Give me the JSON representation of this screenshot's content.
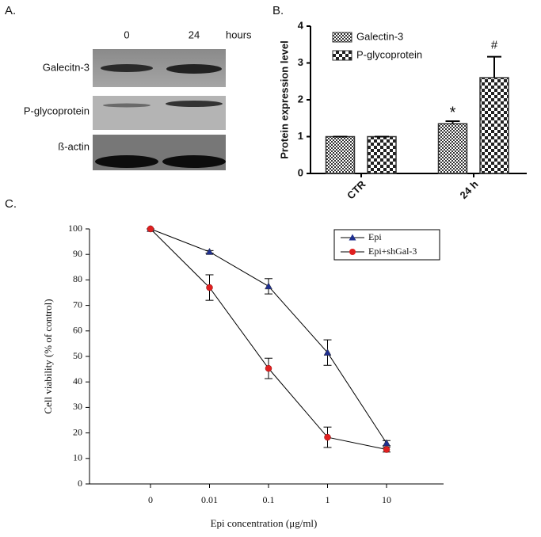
{
  "panel_labels": [
    "A.",
    "B.",
    "C."
  ],
  "blot": {
    "lanes": [
      "0",
      "24"
    ],
    "lane_unit": "hours",
    "rows": [
      "Galecitn-3",
      "P-glycoprotein",
      "ß-actin"
    ]
  },
  "chart_data": [
    {
      "type": "bar",
      "ylabel": "Protein expression level",
      "categories": [
        "CTR",
        "24 h"
      ],
      "series": [
        {
          "name": "Galectin-3",
          "color": "#333333",
          "pattern": "fine",
          "values": [
            1,
            1.35
          ],
          "errors": [
            0,
            0.07
          ]
        },
        {
          "name": "P-glycoprotein",
          "color": "#333333",
          "pattern": "coarse",
          "values": [
            1,
            2.6
          ],
          "errors": [
            0,
            0.57
          ]
        }
      ],
      "annotations": [
        "*",
        "#"
      ],
      "ylim": [
        0,
        4
      ],
      "yticks": [
        0,
        1,
        2,
        3,
        4
      ]
    },
    {
      "type": "line",
      "xlabel": "Epi concentration (μg/ml)",
      "ylabel": "Cell viability (% of control)",
      "categories": [
        "0",
        "0.01",
        "0.1",
        "1",
        "10"
      ],
      "series": [
        {
          "name": "Epi",
          "color": "#1f2f8f",
          "marker": "triangle",
          "values": [
            100,
            91,
            77.5,
            51.5,
            16
          ],
          "errors": [
            0,
            0.5,
            3,
            5,
            1
          ]
        },
        {
          "name": "Epi+shGal-3",
          "color": "#e02020",
          "marker": "circle",
          "values": [
            100,
            77,
            45.3,
            18.3,
            13.5
          ],
          "errors": [
            0,
            5,
            4,
            4,
            1
          ]
        }
      ],
      "ylim": [
        0,
        100
      ],
      "yticks": [
        0,
        10,
        20,
        30,
        40,
        50,
        60,
        70,
        80,
        90,
        100
      ]
    }
  ]
}
